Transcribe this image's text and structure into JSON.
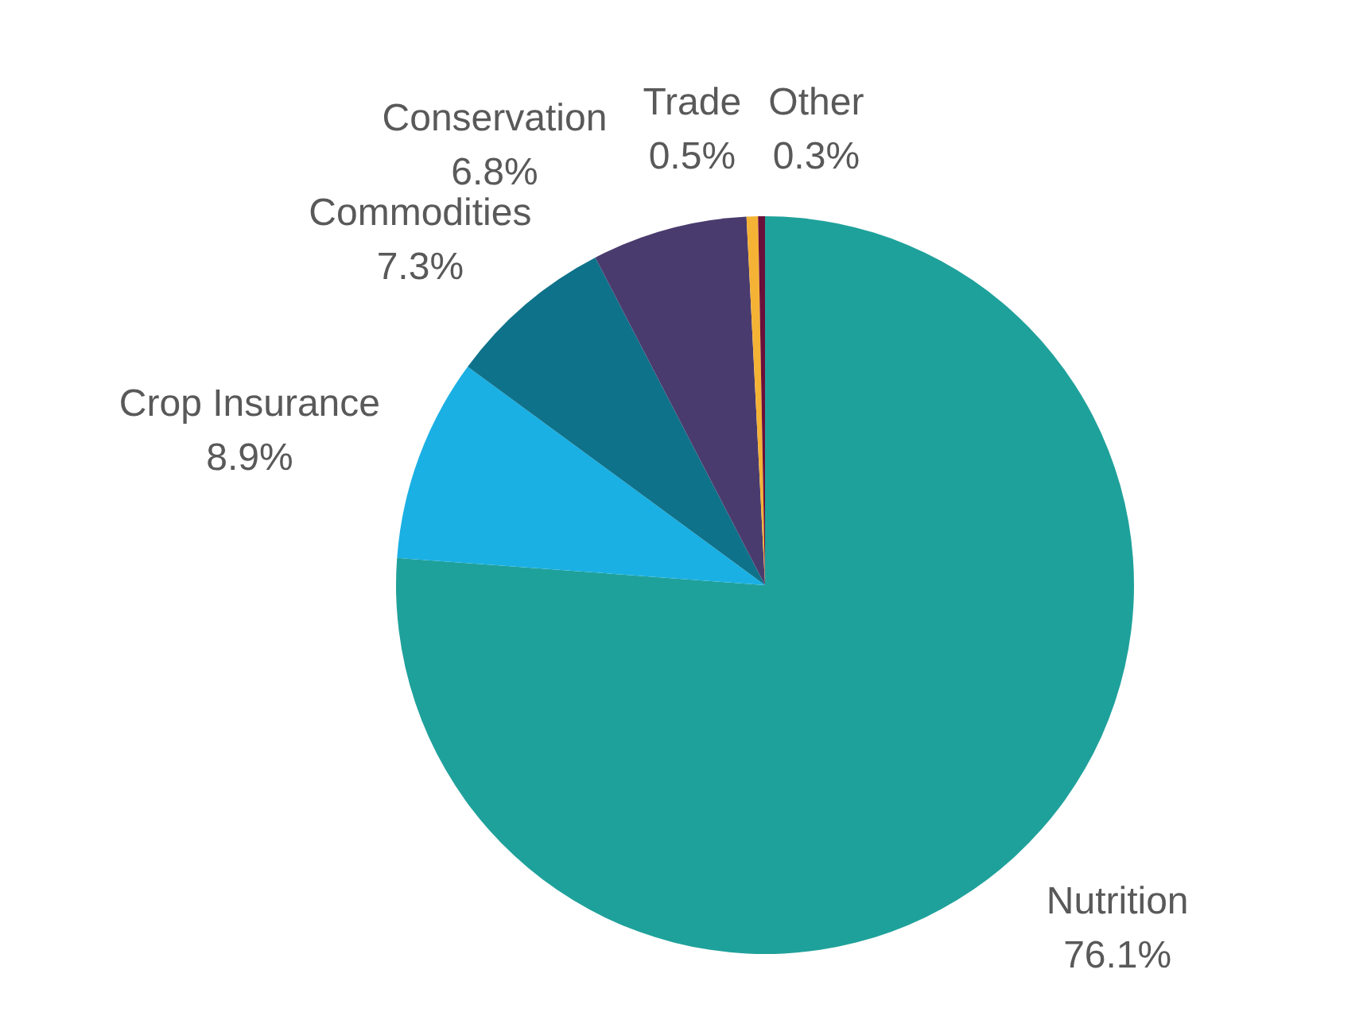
{
  "chart_data": {
    "type": "pie",
    "categories": [
      "Nutrition",
      "Crop Insurance",
      "Commodities",
      "Conservation",
      "Trade",
      "Other"
    ],
    "values": [
      76.1,
      8.9,
      7.3,
      6.8,
      0.5,
      0.3
    ],
    "colors": [
      "#1fa19b",
      "#1ab0e4",
      "#0e728a",
      "#4a3b6e",
      "#f5b335",
      "#6a0f3a"
    ],
    "value_labels": [
      "76.1%",
      "8.9%",
      "7.3%",
      "6.8%",
      "0.5%",
      "0.3%"
    ]
  }
}
